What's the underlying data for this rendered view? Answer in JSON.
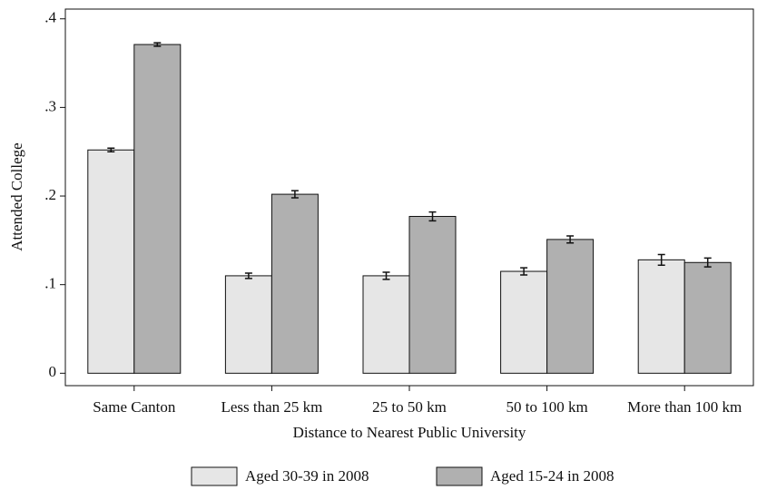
{
  "chart_data": {
    "type": "bar",
    "x_label": "Distance to Nearest Public University",
    "y_label": "Attended College",
    "categories": [
      "Same Canton",
      "Less than 25 km",
      "25 to 50 km",
      "50 to 100 km",
      "More than 100 km"
    ],
    "series": [
      {
        "name": "Aged 30-39 in 2008",
        "color": "#e6e6e6",
        "values": [
          0.252,
          0.11,
          0.11,
          0.115,
          0.128
        ],
        "errors": [
          0.002,
          0.003,
          0.004,
          0.004,
          0.006
        ]
      },
      {
        "name": "Aged 15-24 in 2008",
        "color": "#b0b0b0",
        "values": [
          0.371,
          0.202,
          0.177,
          0.151,
          0.125
        ],
        "errors": [
          0.002,
          0.004,
          0.005,
          0.004,
          0.005
        ]
      }
    ],
    "ylim": [
      -0.014,
      0.411
    ],
    "yticks": [
      0,
      {
        "value": 0.1,
        "label": ".1"
      },
      {
        "value": 0.2,
        "label": ".2"
      },
      {
        "value": 0.3,
        "label": ".3"
      },
      {
        "value": 0.4,
        "label": ".4"
      }
    ],
    "grid": false,
    "legend": "bottom"
  }
}
